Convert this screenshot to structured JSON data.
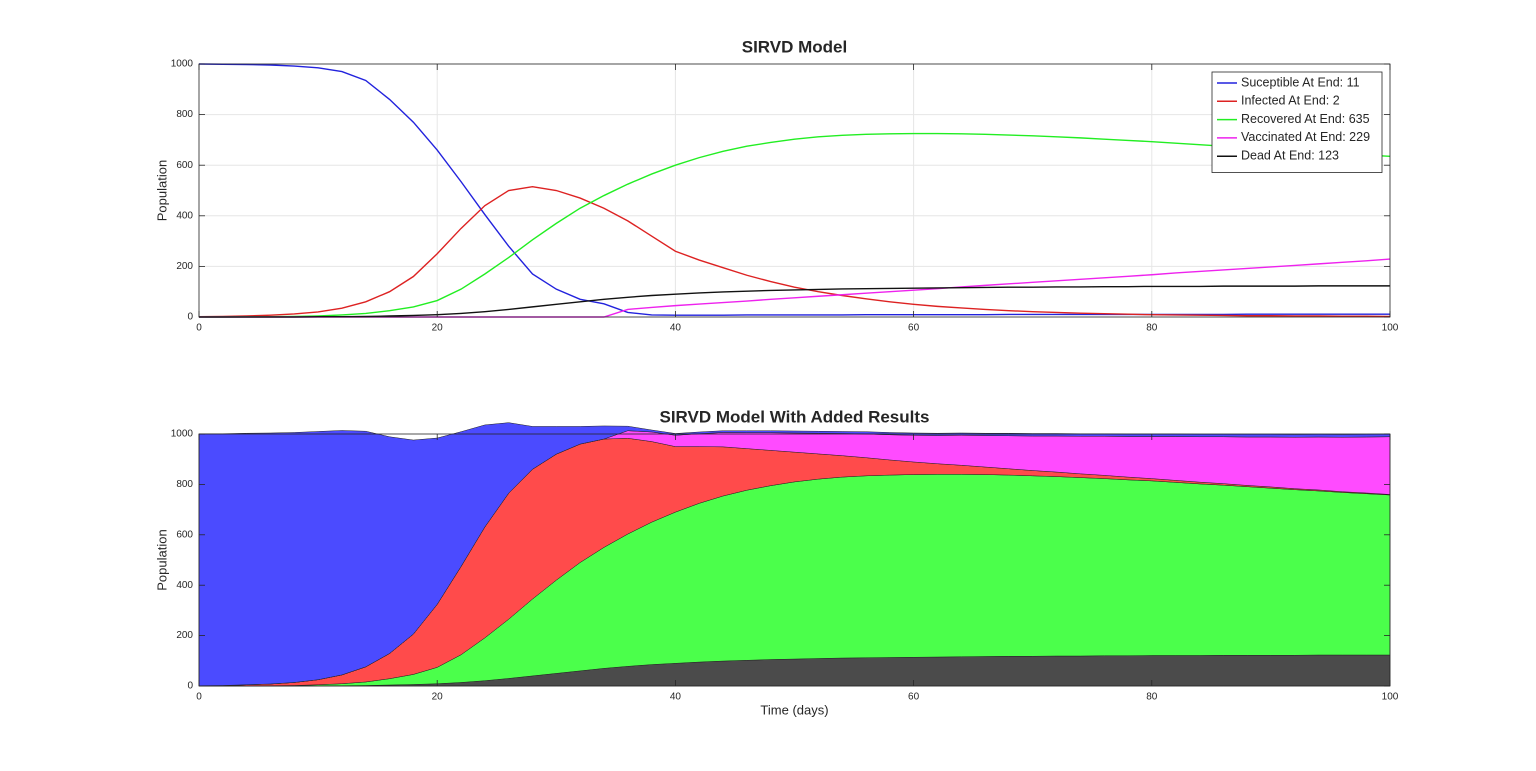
{
  "chart_data": [
    {
      "type": "line",
      "title": "SIRVD Model",
      "y_label": "Population",
      "x": [
        0,
        2,
        4,
        6,
        8,
        10,
        12,
        14,
        16,
        18,
        20,
        22,
        24,
        26,
        28,
        30,
        32,
        34,
        36,
        38,
        40,
        42,
        44,
        46,
        48,
        50,
        52,
        54,
        56,
        58,
        60,
        62,
        64,
        66,
        68,
        70,
        72,
        74,
        76,
        78,
        80,
        82,
        84,
        86,
        88,
        90,
        92,
        94,
        96,
        98,
        100
      ],
      "series": [
        {
          "name": "Suceptible At End: 11",
          "color": "#2222dd",
          "values": [
            1000,
            999,
            998,
            996,
            992,
            985,
            970,
            935,
            860,
            770,
            660,
            535,
            405,
            280,
            170,
            110,
            70,
            52,
            18,
            8,
            7,
            7,
            7,
            8,
            8,
            8,
            8,
            8,
            9,
            9,
            9,
            9,
            9,
            9,
            10,
            10,
            10,
            10,
            10,
            10,
            10,
            10,
            10,
            10,
            11,
            11,
            11,
            11,
            11,
            11,
            11
          ]
        },
        {
          "name": "Infected At End: 2",
          "color": "#dd2222",
          "values": [
            1,
            2,
            4,
            7,
            12,
            20,
            35,
            60,
            100,
            160,
            250,
            350,
            440,
            500,
            515,
            500,
            470,
            430,
            380,
            320,
            260,
            225,
            195,
            165,
            140,
            118,
            100,
            85,
            72,
            60,
            50,
            42,
            36,
            30,
            25,
            21,
            18,
            15,
            13,
            11,
            9,
            8,
            7,
            6,
            5,
            5,
            4,
            4,
            3,
            3,
            2
          ]
        },
        {
          "name": "Recovered At End: 635",
          "color": "#22ee22",
          "values": [
            0,
            0,
            1,
            1,
            2,
            4,
            8,
            14,
            25,
            40,
            65,
            110,
            170,
            235,
            305,
            370,
            430,
            480,
            525,
            565,
            600,
            630,
            655,
            675,
            690,
            703,
            712,
            718,
            722,
            724,
            725,
            725,
            724,
            722,
            719,
            716,
            712,
            708,
            703,
            698,
            693,
            687,
            681,
            675,
            669,
            663,
            657,
            651,
            645,
            640,
            635
          ]
        },
        {
          "name": "Vaccinated At End: 229",
          "color": "#ee22ee",
          "values": [
            0,
            0,
            0,
            0,
            0,
            0,
            0,
            0,
            0,
            0,
            0,
            0,
            0,
            0,
            0,
            0,
            0,
            0,
            30,
            38,
            45,
            51,
            57,
            63,
            70,
            76,
            82,
            88,
            94,
            100,
            106,
            112,
            119,
            125,
            131,
            137,
            143,
            149,
            155,
            161,
            167,
            174,
            180,
            186,
            192,
            198,
            204,
            210,
            216,
            222,
            229
          ]
        },
        {
          "name": "Dead At End: 123",
          "color": "#111111",
          "values": [
            0,
            0,
            0,
            0,
            0,
            1,
            1,
            2,
            4,
            6,
            9,
            14,
            21,
            30,
            40,
            50,
            60,
            70,
            78,
            85,
            90,
            95,
            99,
            102,
            105,
            107,
            109,
            111,
            112,
            113,
            114,
            115,
            116,
            117,
            118,
            118,
            119,
            119,
            120,
            120,
            121,
            121,
            121,
            122,
            122,
            122,
            122,
            123,
            123,
            123,
            123
          ]
        }
      ],
      "xlim": [
        0,
        100
      ],
      "ylim": [
        0,
        1000
      ],
      "xticks": [
        0,
        20,
        40,
        60,
        80,
        100
      ],
      "yticks": [
        0,
        200,
        400,
        600,
        800,
        1000
      ],
      "grid": true,
      "legend": "northeast"
    },
    {
      "type": "stacked_area",
      "title": "SIRVD Model With Added Results",
      "x_label": "Time (days)",
      "y_label": "Population",
      "x": [
        0,
        2,
        4,
        6,
        8,
        10,
        12,
        14,
        16,
        18,
        20,
        22,
        24,
        26,
        28,
        30,
        32,
        34,
        36,
        38,
        40,
        42,
        44,
        46,
        48,
        50,
        52,
        54,
        56,
        58,
        60,
        62,
        64,
        66,
        68,
        70,
        72,
        74,
        76,
        78,
        80,
        82,
        84,
        86,
        88,
        90,
        92,
        94,
        96,
        98,
        100
      ],
      "series": [
        {
          "color": "#4b4b4b",
          "values": [
            0,
            0,
            0,
            0,
            0,
            1,
            1,
            2,
            4,
            6,
            9,
            14,
            21,
            30,
            40,
            50,
            60,
            70,
            78,
            85,
            90,
            95,
            99,
            102,
            105,
            107,
            109,
            111,
            112,
            113,
            114,
            115,
            116,
            117,
            118,
            118,
            119,
            119,
            120,
            120,
            121,
            121,
            121,
            122,
            122,
            122,
            122,
            123,
            123,
            123,
            123
          ]
        },
        {
          "color": "#4bff4b",
          "values": [
            0,
            0,
            1,
            1,
            2,
            4,
            8,
            14,
            25,
            40,
            65,
            110,
            170,
            235,
            305,
            370,
            430,
            480,
            525,
            565,
            600,
            630,
            655,
            675,
            690,
            703,
            712,
            718,
            722,
            724,
            725,
            725,
            724,
            722,
            719,
            716,
            712,
            708,
            703,
            698,
            693,
            687,
            681,
            675,
            669,
            663,
            657,
            651,
            645,
            640,
            635
          ]
        },
        {
          "color": "#ff4b4b",
          "values": [
            1,
            2,
            4,
            7,
            12,
            20,
            35,
            60,
            100,
            160,
            250,
            350,
            440,
            500,
            515,
            500,
            470,
            430,
            380,
            320,
            260,
            225,
            195,
            165,
            140,
            118,
            100,
            85,
            72,
            60,
            50,
            42,
            36,
            30,
            25,
            21,
            18,
            15,
            13,
            11,
            9,
            8,
            7,
            6,
            5,
            5,
            4,
            4,
            3,
            3,
            2
          ]
        },
        {
          "color": "#ff4bff",
          "values": [
            0,
            0,
            0,
            0,
            0,
            0,
            0,
            0,
            0,
            0,
            0,
            0,
            0,
            0,
            0,
            0,
            0,
            0,
            30,
            38,
            45,
            51,
            57,
            63,
            70,
            76,
            82,
            88,
            94,
            100,
            106,
            112,
            119,
            125,
            131,
            137,
            143,
            149,
            155,
            161,
            167,
            174,
            180,
            186,
            192,
            198,
            204,
            210,
            216,
            222,
            229
          ]
        },
        {
          "color": "#4b4bff",
          "values": [
            1000,
            999,
            998,
            996,
            992,
            985,
            970,
            935,
            860,
            770,
            660,
            535,
            405,
            280,
            170,
            110,
            70,
            52,
            18,
            8,
            7,
            7,
            7,
            8,
            8,
            8,
            8,
            8,
            9,
            9,
            9,
            9,
            9,
            9,
            10,
            10,
            10,
            10,
            10,
            10,
            10,
            10,
            10,
            10,
            11,
            11,
            11,
            11,
            11,
            11,
            11
          ]
        }
      ],
      "xlim": [
        0,
        100
      ],
      "ylim": [
        0,
        1000
      ],
      "xticks": [
        0,
        20,
        40,
        60,
        80,
        100
      ],
      "yticks": [
        0,
        200,
        400,
        600,
        800,
        1000
      ],
      "grid": false
    }
  ]
}
